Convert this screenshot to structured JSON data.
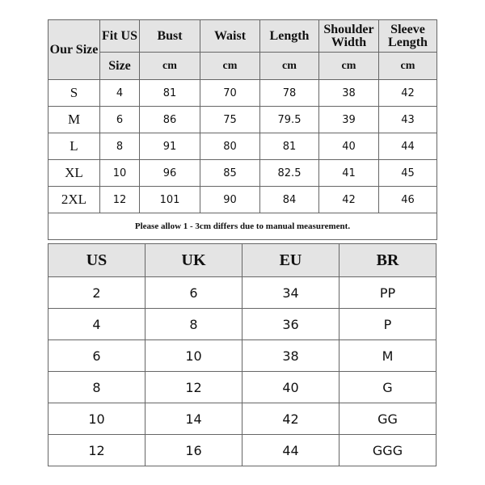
{
  "measurements": {
    "headers": {
      "our_size": "Our Size",
      "fit_us": "Fit US",
      "fit_us_size": "Size",
      "bust": "Bust",
      "waist": "Waist",
      "length": "Length",
      "shoulder_width": "Shoulder Width",
      "sleeve_length": "Sleeve Length",
      "unit": "cm"
    },
    "rows": [
      {
        "size": "S",
        "us": "4",
        "bust": "81",
        "waist": "70",
        "length": "78",
        "shoulder": "38",
        "sleeve": "42"
      },
      {
        "size": "M",
        "us": "6",
        "bust": "86",
        "waist": "75",
        "length": "79.5",
        "shoulder": "39",
        "sleeve": "43"
      },
      {
        "size": "L",
        "us": "8",
        "bust": "91",
        "waist": "80",
        "length": "81",
        "shoulder": "40",
        "sleeve": "44"
      },
      {
        "size": "XL",
        "us": "10",
        "bust": "96",
        "waist": "85",
        "length": "82.5",
        "shoulder": "41",
        "sleeve": "45"
      },
      {
        "size": "2XL",
        "us": "12",
        "bust": "101",
        "waist": "90",
        "length": "84",
        "shoulder": "42",
        "sleeve": "46"
      }
    ],
    "note": "Please allow 1 - 3cm differs due to manual measurement."
  },
  "conversion": {
    "headers": [
      "US",
      "UK",
      "EU",
      "BR"
    ],
    "rows": [
      [
        "2",
        "6",
        "34",
        "PP"
      ],
      [
        "4",
        "8",
        "36",
        "P"
      ],
      [
        "6",
        "10",
        "38",
        "M"
      ],
      [
        "8",
        "12",
        "40",
        "G"
      ],
      [
        "10",
        "14",
        "42",
        "GG"
      ],
      [
        "12",
        "16",
        "44",
        "GGG"
      ]
    ]
  },
  "colors": {
    "header_bg": "#e4e4e4",
    "border": "#666666"
  }
}
